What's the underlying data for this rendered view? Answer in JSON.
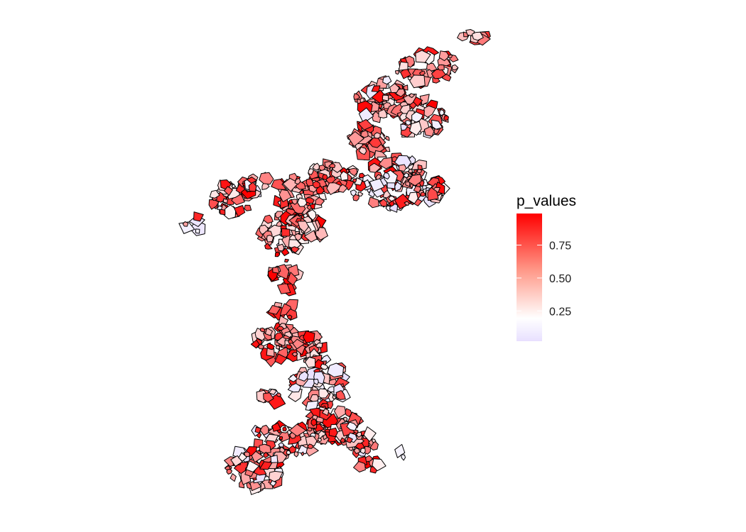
{
  "legend": {
    "title": "p_values",
    "ticks": [
      {
        "value": 0.75,
        "label": "0.75"
      },
      {
        "value": 0.5,
        "label": "0.50"
      },
      {
        "value": 0.25,
        "label": "0.25"
      }
    ],
    "range": [
      0.0,
      1.0
    ],
    "colors": {
      "low": "#e8e0ff",
      "mid": "#ffffff",
      "high": "#ff0000"
    }
  }
}
